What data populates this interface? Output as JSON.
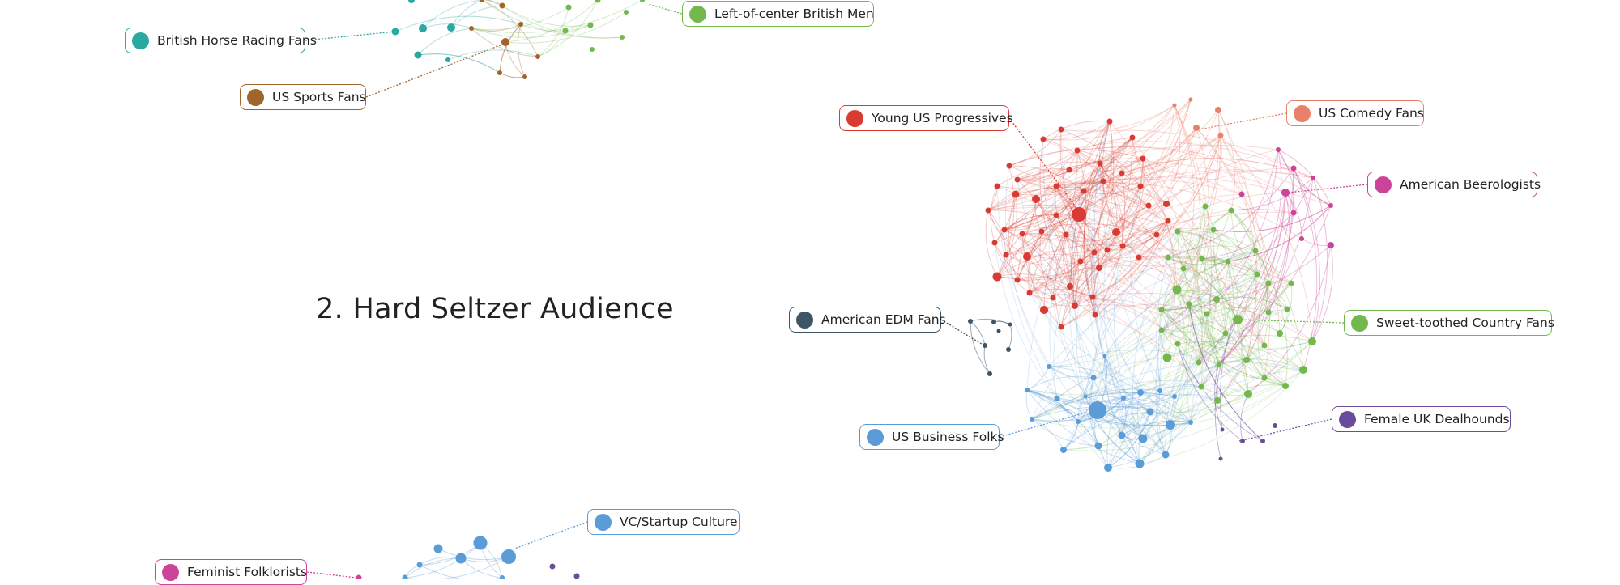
{
  "title": "2. Hard Seltzer Audience",
  "colors": {
    "red": "#d93a32",
    "salmon": "#e8806a",
    "magenta": "#cc4499",
    "green": "#72b84c",
    "blue": "#5b9bd8",
    "purple": "#6a4c9c",
    "slate": "#3e5565",
    "teal": "#2aa9a3",
    "brown": "#a0652a"
  },
  "labels": [
    {
      "key": "left_center_men",
      "text": "Left-of-center British Men",
      "color": "#72b84c"
    },
    {
      "key": "horse_racing",
      "text": "British Horse Racing Fans",
      "color": "#2aa9a3"
    },
    {
      "key": "us_sports",
      "text": "US Sports Fans",
      "color": "#a0652a"
    },
    {
      "key": "young_progressives",
      "text": "Young US Progressives",
      "color": "#d93a32"
    },
    {
      "key": "comedy",
      "text": "US Comedy Fans",
      "color": "#e8806a"
    },
    {
      "key": "beerologists",
      "text": "American Beerologists",
      "color": "#cc4499"
    },
    {
      "key": "edm",
      "text": "American EDM Fans",
      "color": "#3e5565"
    },
    {
      "key": "country",
      "text": "Sweet-toothed Country Fans",
      "color": "#72b84c"
    },
    {
      "key": "dealhounds",
      "text": "Female UK Dealhounds",
      "color": "#6a4c9c"
    },
    {
      "key": "business",
      "text": "US Business Folks",
      "color": "#5b9bd8"
    },
    {
      "key": "vc",
      "text": "VC/Startup Culture",
      "color": "#5b9bd8"
    },
    {
      "key": "folklorists",
      "text": "Feminist Folklorists",
      "color": "#cc4499"
    }
  ]
}
